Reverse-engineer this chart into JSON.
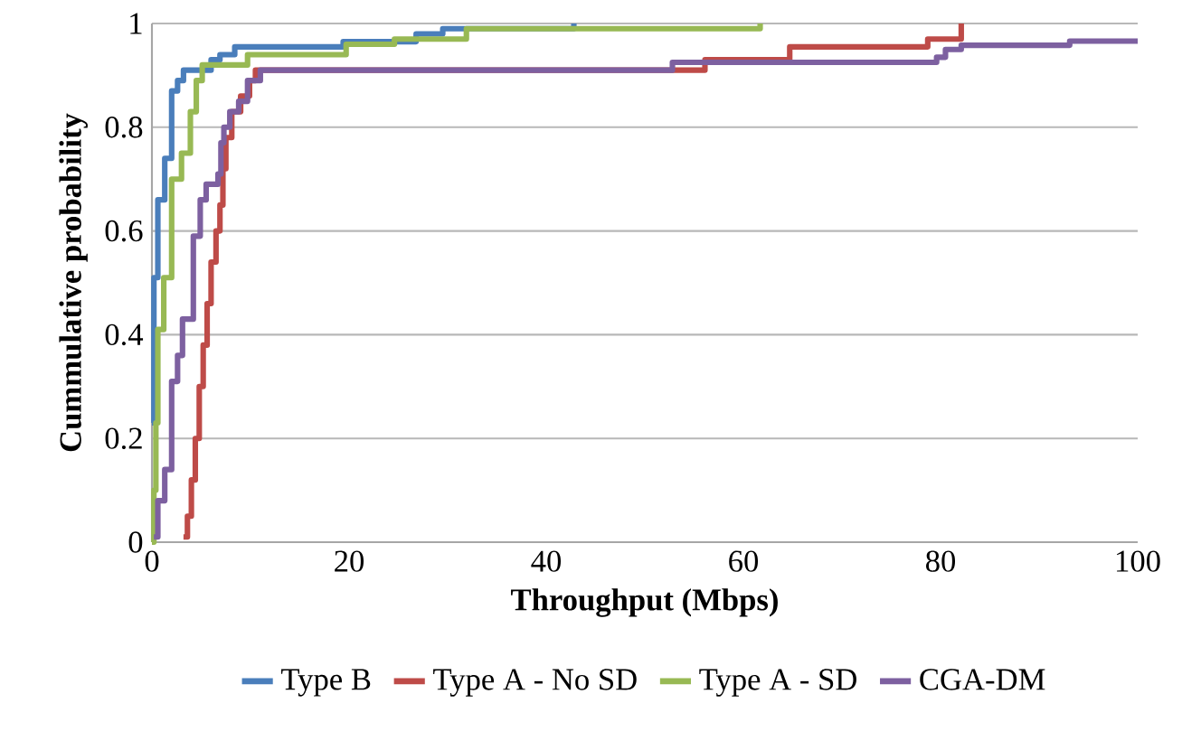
{
  "chart_data": {
    "type": "step",
    "xlabel": "Throughput (Mbps)",
    "ylabel": "Cummulative probability",
    "xlim": [
      0,
      100
    ],
    "ylim": [
      0,
      1
    ],
    "xticks": [
      0,
      20,
      40,
      60,
      80,
      100
    ],
    "yticks": [
      0,
      0.2,
      0.4,
      0.6,
      0.8,
      1
    ],
    "grid": "y",
    "legend": "bottom",
    "marker": "none",
    "line_style": "solid",
    "series": [
      {
        "name": "Type B",
        "color": "#4a7ebb",
        "x": [
          0,
          0.2,
          0.6,
          1.3,
          2.0,
          2.6,
          3.2,
          6.0,
          6.9,
          8.4,
          19.4,
          26.8,
          29.5,
          42.8
        ],
        "values": [
          0.23,
          0.51,
          0.66,
          0.74,
          0.87,
          0.89,
          0.91,
          0.93,
          0.94,
          0.955,
          0.965,
          0.98,
          0.99,
          1
        ]
      },
      {
        "name": "Type A - No SD",
        "color": "#be4b48",
        "x": [
          3.2,
          3.6,
          4.0,
          4.4,
          4.8,
          5.2,
          5.6,
          6.0,
          6.5,
          6.9,
          7.2,
          7.5,
          8.1,
          9.0,
          9.9,
          10.5,
          56.1,
          64.7,
          78.7,
          82.1
        ],
        "values": [
          0.01,
          0.05,
          0.12,
          0.2,
          0.3,
          0.38,
          0.46,
          0.54,
          0.6,
          0.65,
          0.72,
          0.78,
          0.83,
          0.86,
          0.89,
          0.91,
          0.93,
          0.955,
          0.97,
          1
        ]
      },
      {
        "name": "Type A - SD",
        "color": "#98b954",
        "x": [
          0,
          0.2,
          0.4,
          0.6,
          1.2,
          2.0,
          3.0,
          3.9,
          4.5,
          5.1,
          9.7,
          19.7,
          24.6,
          31.9,
          61.7
        ],
        "values": [
          0,
          0.1,
          0.23,
          0.41,
          0.51,
          0.7,
          0.75,
          0.83,
          0.89,
          0.92,
          0.94,
          0.96,
          0.97,
          0.99,
          1
        ]
      },
      {
        "name": "CGA-DM",
        "color": "#7d60a0",
        "x": [
          0.2,
          0.6,
          1.3,
          2.0,
          2.6,
          3.1,
          4.2,
          4.9,
          5.5,
          6.7,
          7.0,
          7.3,
          7.9,
          8.8,
          9.7,
          11,
          52.8,
          79.6,
          80.5,
          82.1,
          93.1,
          100
        ],
        "values": [
          0.01,
          0.08,
          0.14,
          0.31,
          0.36,
          0.43,
          0.59,
          0.66,
          0.69,
          0.71,
          0.77,
          0.8,
          0.83,
          0.85,
          0.89,
          0.91,
          0.925,
          0.935,
          0.95,
          0.958,
          0.966,
          0.966
        ]
      }
    ]
  }
}
